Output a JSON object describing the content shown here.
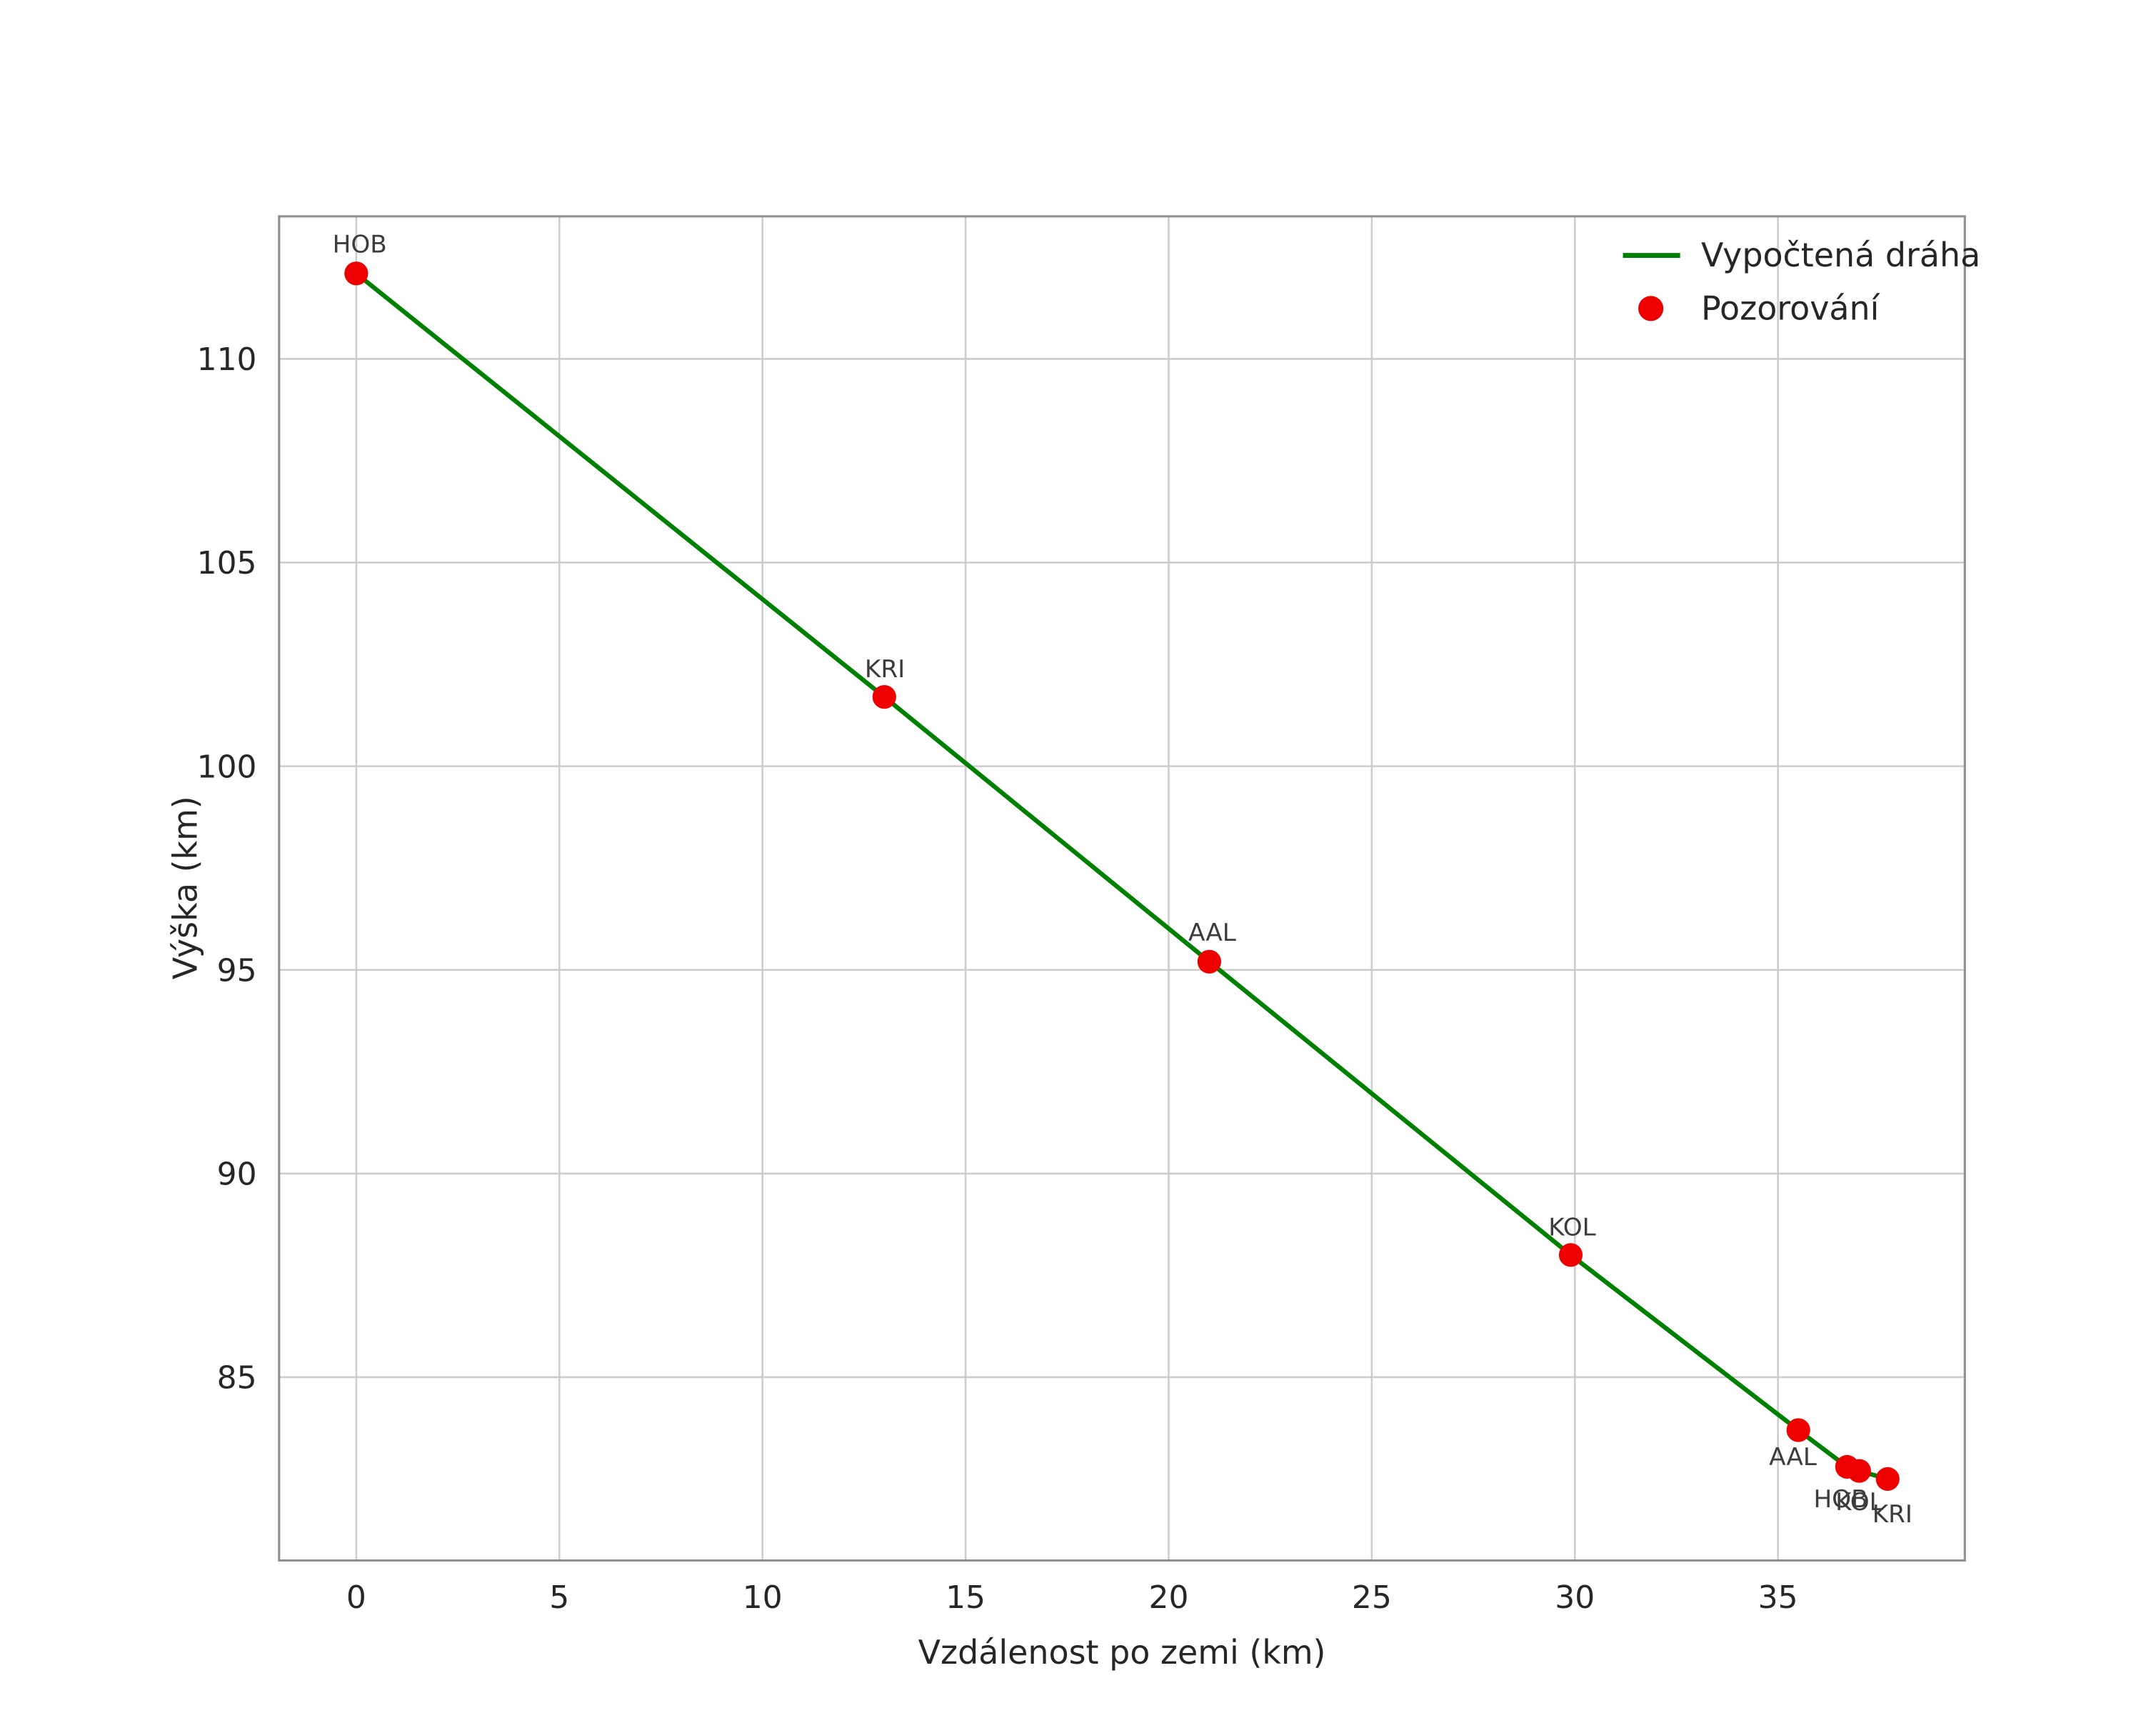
{
  "chart_data": {
    "type": "line+scatter",
    "title": "",
    "xlabel": "Vzdálenost po zemi (km)",
    "ylabel": "Výška (km)",
    "xlim": [
      -1.9,
      39.6
    ],
    "ylim": [
      80.5,
      113.5
    ],
    "xticks": [
      0,
      5,
      10,
      15,
      20,
      25,
      30,
      35
    ],
    "yticks": [
      85,
      90,
      95,
      100,
      105,
      110
    ],
    "grid": true,
    "colors": {
      "line": "#008000",
      "marker": "#ee0000",
      "grid": "#cccccc",
      "spine": "#8f8f8f",
      "text": "#262626"
    },
    "legend": {
      "position": "upper-right",
      "entries": [
        {
          "label": "Vypočtená dráha",
          "marker": "line"
        },
        {
          "label": "Pozorování",
          "marker": "dot"
        }
      ]
    },
    "line_series": {
      "name": "Vypočtená dráha",
      "points": [
        [
          0.0,
          112.1
        ],
        [
          13.0,
          101.7
        ],
        [
          21.0,
          95.2
        ],
        [
          29.9,
          88.0
        ],
        [
          35.5,
          83.7
        ],
        [
          36.7,
          82.8
        ],
        [
          37.0,
          82.7
        ],
        [
          37.7,
          82.5
        ]
      ]
    },
    "observations": {
      "name": "Pozorování",
      "points": [
        {
          "station": "HOB",
          "x": 0.0,
          "y": 112.1,
          "dx": -17,
          "dy": -15
        },
        {
          "station": "KRI",
          "x": 13.0,
          "y": 101.7,
          "dx": -14,
          "dy": -14
        },
        {
          "station": "AAL",
          "x": 21.0,
          "y": 95.2,
          "dx": -15,
          "dy": -15
        },
        {
          "station": "KOL",
          "x": 29.9,
          "y": 88.0,
          "dx": -16,
          "dy": -14
        },
        {
          "station": "AAL",
          "x": 35.5,
          "y": 83.7,
          "dx": -21,
          "dy": 25
        },
        {
          "station": "HOB",
          "x": 36.7,
          "y": 82.8,
          "dx": -24,
          "dy": 29
        },
        {
          "station": "KOL",
          "x": 37.0,
          "y": 82.7,
          "dx": -17,
          "dy": 28
        },
        {
          "station": "KRI",
          "x": 37.7,
          "y": 82.5,
          "dx": -11,
          "dy": 31
        }
      ]
    }
  }
}
